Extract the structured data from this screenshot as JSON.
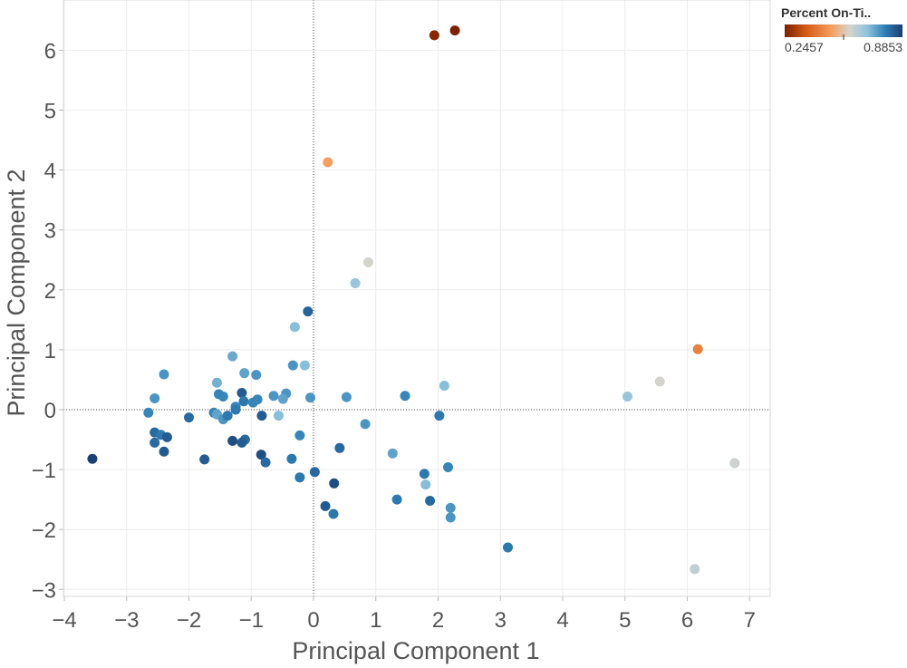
{
  "chart_data": {
    "type": "scatter",
    "title": "",
    "xlabel": "Principal Component 1",
    "ylabel": "Principal Component 2",
    "xlim": [
      -4.2,
      7.4
    ],
    "ylim": [
      -3.3,
      6.8
    ],
    "xticks": [
      -4,
      -3,
      -2,
      -1,
      0,
      1,
      2,
      3,
      4,
      5,
      6,
      7
    ],
    "yticks": [
      -3,
      -2,
      -1,
      0,
      1,
      2,
      3,
      4,
      5,
      6
    ],
    "grid": true,
    "zero_lines": true,
    "color_legend": {
      "title": "Percent On-Ti..",
      "min_label": "0.2457",
      "max_label": "0.8853",
      "min": 0.2457,
      "max": 0.8853,
      "position": "top-right",
      "palette": [
        "#7a2000",
        "#d45a14",
        "#f4a060",
        "#d9d4cc",
        "#8ec3dc",
        "#2f7fb5",
        "#1a3d70"
      ]
    },
    "points": [
      {
        "x": 1.94,
        "y": 6.25,
        "v": 0.26
      },
      {
        "x": 2.27,
        "y": 6.33,
        "v": 0.25
      },
      {
        "x": 0.23,
        "y": 4.13,
        "v": 0.5
      },
      {
        "x": 0.88,
        "y": 2.46,
        "v": 0.6
      },
      {
        "x": 0.67,
        "y": 2.11,
        "v": 0.68
      },
      {
        "x": 6.17,
        "y": 1.01,
        "v": 0.44
      },
      {
        "x": 5.56,
        "y": 0.47,
        "v": 0.6
      },
      {
        "x": 5.04,
        "y": 0.22,
        "v": 0.68
      },
      {
        "x": 6.76,
        "y": -0.89,
        "v": 0.61
      },
      {
        "x": 6.12,
        "y": -2.66,
        "v": 0.63
      },
      {
        "x": -0.09,
        "y": 1.64,
        "v": 0.83
      },
      {
        "x": -0.3,
        "y": 1.38,
        "v": 0.7
      },
      {
        "x": -1.3,
        "y": 0.89,
        "v": 0.73
      },
      {
        "x": -1.55,
        "y": 0.45,
        "v": 0.72
      },
      {
        "x": -1.11,
        "y": 0.61,
        "v": 0.74
      },
      {
        "x": -0.92,
        "y": 0.58,
        "v": 0.76
      },
      {
        "x": -0.33,
        "y": 0.74,
        "v": 0.76
      },
      {
        "x": -0.14,
        "y": 0.74,
        "v": 0.7
      },
      {
        "x": -2.4,
        "y": 0.59,
        "v": 0.76
      },
      {
        "x": -2.55,
        "y": 0.19,
        "v": 0.76
      },
      {
        "x": -2.65,
        "y": -0.05,
        "v": 0.78
      },
      {
        "x": -2.0,
        "y": -0.13,
        "v": 0.82
      },
      {
        "x": -1.52,
        "y": 0.26,
        "v": 0.78
      },
      {
        "x": -1.45,
        "y": 0.22,
        "v": 0.78
      },
      {
        "x": -1.15,
        "y": 0.28,
        "v": 0.84
      },
      {
        "x": -1.12,
        "y": 0.14,
        "v": 0.8
      },
      {
        "x": -0.97,
        "y": 0.12,
        "v": 0.78
      },
      {
        "x": -0.9,
        "y": 0.17,
        "v": 0.78
      },
      {
        "x": -1.25,
        "y": 0.05,
        "v": 0.78
      },
      {
        "x": -1.25,
        "y": 0.0,
        "v": 0.8
      },
      {
        "x": -0.64,
        "y": 0.23,
        "v": 0.76
      },
      {
        "x": -0.44,
        "y": 0.27,
        "v": 0.76
      },
      {
        "x": -0.49,
        "y": 0.18,
        "v": 0.74
      },
      {
        "x": -0.05,
        "y": 0.2,
        "v": 0.76
      },
      {
        "x": 0.53,
        "y": 0.21,
        "v": 0.76
      },
      {
        "x": 1.47,
        "y": 0.23,
        "v": 0.78
      },
      {
        "x": 2.1,
        "y": 0.4,
        "v": 0.7
      },
      {
        "x": -1.6,
        "y": -0.05,
        "v": 0.78
      },
      {
        "x": -1.55,
        "y": -0.08,
        "v": 0.74
      },
      {
        "x": -1.45,
        "y": -0.16,
        "v": 0.76
      },
      {
        "x": -1.38,
        "y": -0.1,
        "v": 0.8
      },
      {
        "x": -0.83,
        "y": -0.1,
        "v": 0.84
      },
      {
        "x": -0.56,
        "y": -0.1,
        "v": 0.7
      },
      {
        "x": 0.83,
        "y": -0.24,
        "v": 0.76
      },
      {
        "x": 2.02,
        "y": -0.1,
        "v": 0.8
      },
      {
        "x": -2.55,
        "y": -0.38,
        "v": 0.82
      },
      {
        "x": -2.45,
        "y": -0.42,
        "v": 0.8
      },
      {
        "x": -2.35,
        "y": -0.46,
        "v": 0.84
      },
      {
        "x": -2.55,
        "y": -0.55,
        "v": 0.82
      },
      {
        "x": -2.4,
        "y": -0.7,
        "v": 0.84
      },
      {
        "x": -1.75,
        "y": -0.83,
        "v": 0.84
      },
      {
        "x": -3.55,
        "y": -0.82,
        "v": 0.88
      },
      {
        "x": -1.3,
        "y": -0.52,
        "v": 0.86
      },
      {
        "x": -1.1,
        "y": -0.5,
        "v": 0.82
      },
      {
        "x": -1.15,
        "y": -0.55,
        "v": 0.84
      },
      {
        "x": -0.84,
        "y": -0.75,
        "v": 0.86
      },
      {
        "x": -0.77,
        "y": -0.88,
        "v": 0.82
      },
      {
        "x": -0.22,
        "y": -0.43,
        "v": 0.78
      },
      {
        "x": -0.35,
        "y": -0.82,
        "v": 0.8
      },
      {
        "x": -0.22,
        "y": -1.13,
        "v": 0.8
      },
      {
        "x": 0.42,
        "y": -0.64,
        "v": 0.82
      },
      {
        "x": 0.02,
        "y": -1.04,
        "v": 0.82
      },
      {
        "x": 0.33,
        "y": -1.23,
        "v": 0.86
      },
      {
        "x": 1.27,
        "y": -0.73,
        "v": 0.74
      },
      {
        "x": 1.78,
        "y": -1.07,
        "v": 0.8
      },
      {
        "x": 1.8,
        "y": -1.25,
        "v": 0.7
      },
      {
        "x": 2.16,
        "y": -0.96,
        "v": 0.78
      },
      {
        "x": 0.19,
        "y": -1.61,
        "v": 0.84
      },
      {
        "x": 0.32,
        "y": -1.74,
        "v": 0.8
      },
      {
        "x": 1.34,
        "y": -1.5,
        "v": 0.8
      },
      {
        "x": 1.87,
        "y": -1.52,
        "v": 0.82
      },
      {
        "x": 2.2,
        "y": -1.64,
        "v": 0.76
      },
      {
        "x": 2.2,
        "y": -1.8,
        "v": 0.76
      },
      {
        "x": 3.12,
        "y": -2.3,
        "v": 0.8
      }
    ]
  }
}
